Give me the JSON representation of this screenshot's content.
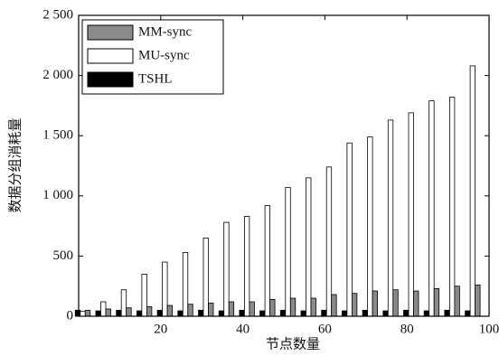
{
  "chart_data": {
    "type": "bar",
    "x_label": "节点数量",
    "y_label": "数据分组消耗量",
    "x": [
      1,
      6,
      11,
      16,
      21,
      26,
      31,
      36,
      41,
      46,
      51,
      56,
      61,
      66,
      71,
      76,
      81,
      86,
      91,
      96
    ],
    "series": [
      {
        "name": "MM-sync",
        "color": "#8a8a8a",
        "values": [
          50,
          60,
          70,
          80,
          90,
          100,
          110,
          120,
          120,
          140,
          150,
          150,
          180,
          190,
          210,
          220,
          210,
          230,
          250,
          260
        ]
      },
      {
        "name": "MU-sync",
        "color": "#ffffff",
        "values": [
          40,
          120,
          220,
          350,
          450,
          530,
          650,
          780,
          830,
          920,
          1070,
          1150,
          1240,
          1440,
          1490,
          1630,
          1690,
          1790,
          1820,
          2080
        ]
      },
      {
        "name": "TSHL",
        "color": "#000000",
        "values": [
          50,
          45,
          50,
          45,
          50,
          45,
          50,
          45,
          50,
          45,
          50,
          45,
          50,
          45,
          50,
          45,
          50,
          45,
          50,
          45
        ]
      }
    ],
    "xlim": [
      0,
      100
    ],
    "xticks": [
      20,
      40,
      60,
      80,
      100
    ],
    "ylim": [
      0,
      2500
    ],
    "yticks": [
      0,
      500,
      {
        "value": 1000,
        "label": "1 000"
      },
      {
        "value": 1500,
        "label": "1 500"
      },
      {
        "value": 2000,
        "label": "2 000"
      },
      {
        "value": 2500,
        "label": "2 500"
      }
    ],
    "legend": "upper left"
  }
}
